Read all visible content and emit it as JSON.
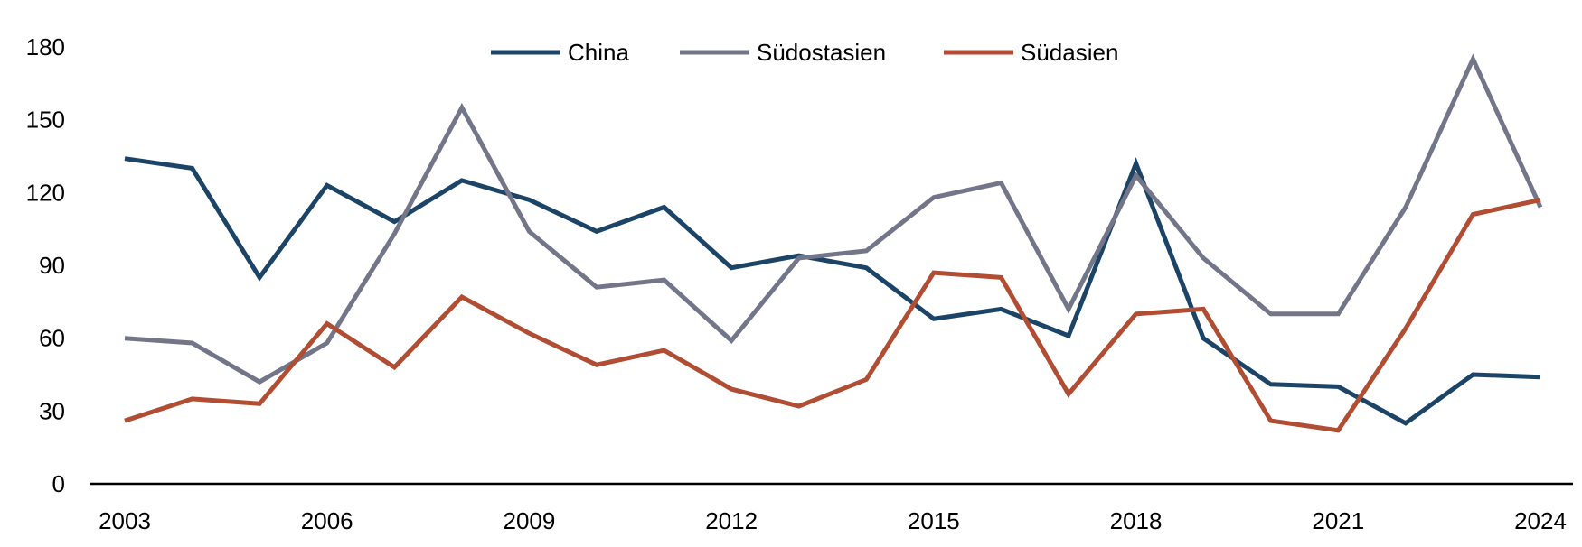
{
  "chart_data": {
    "type": "line",
    "title": "",
    "xlabel": "",
    "ylabel": "",
    "x": [
      2003,
      2004,
      2005,
      2006,
      2007,
      2008,
      2009,
      2010,
      2011,
      2012,
      2013,
      2014,
      2015,
      2016,
      2017,
      2018,
      2019,
      2020,
      2021,
      2022,
      2023,
      2024
    ],
    "x_ticks": [
      "2003",
      "2006",
      "2009",
      "2012",
      "2015",
      "2018",
      "2021",
      "2024"
    ],
    "ylim": [
      0,
      180
    ],
    "y_ticks": [
      "0",
      "30",
      "60",
      "90",
      "120",
      "150",
      "180"
    ],
    "grid": false,
    "legend_position": "top-center",
    "series": [
      {
        "name": "China",
        "color": "#1b4466",
        "values": [
          134,
          130,
          85,
          123,
          108,
          125,
          117,
          104,
          114,
          89,
          94,
          89,
          68,
          72,
          61,
          132,
          60,
          41,
          40,
          25,
          45,
          44
        ]
      },
      {
        "name": "Südostasien",
        "color": "#737689",
        "values": [
          60,
          58,
          42,
          58,
          103,
          155,
          104,
          81,
          84,
          59,
          93,
          96,
          118,
          124,
          72,
          127,
          93,
          70,
          70,
          114,
          175,
          114
        ]
      },
      {
        "name": "Südasien",
        "color": "#b04d33",
        "values": [
          26,
          35,
          33,
          66,
          48,
          77,
          62,
          49,
          55,
          39,
          32,
          43,
          87,
          85,
          37,
          70,
          72,
          26,
          22,
          64,
          111,
          117
        ]
      }
    ]
  }
}
